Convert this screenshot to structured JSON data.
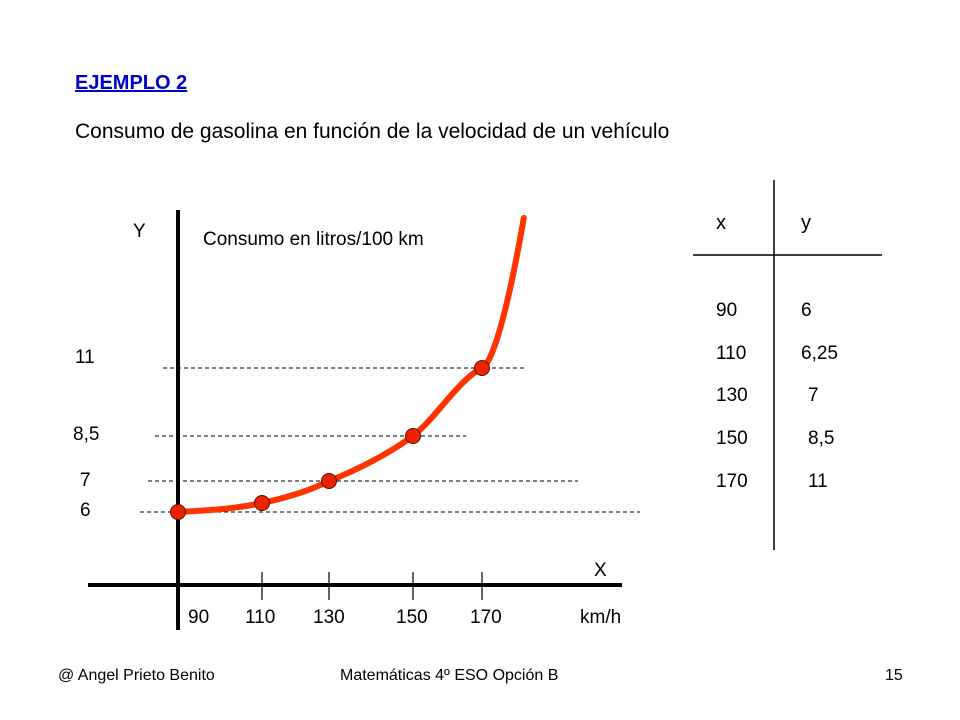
{
  "slide": {
    "heading": "EJEMPLO 2",
    "title": "Consumo de gasolina en función de la velocidad de un vehículo"
  },
  "footer": {
    "author": "@  Angel Prieto Benito",
    "course": "Matemáticas  4º ESO  Opción B",
    "page": "15"
  },
  "chart_data": {
    "type": "line",
    "title": "Consumo en litros/100 km",
    "xlabel": "X",
    "ylabel": "Y",
    "x_unit": "km/h",
    "x_ticks": [
      "90",
      "110",
      "130",
      "150",
      "170"
    ],
    "y_ticks": [
      "6",
      "7",
      "8,5",
      "11"
    ],
    "points": [
      {
        "x": 90,
        "y": 6
      },
      {
        "x": 110,
        "y": 6.25
      },
      {
        "x": 130,
        "y": 7
      },
      {
        "x": 150,
        "y": 8.5
      },
      {
        "x": 170,
        "y": 11
      }
    ],
    "curve_color": "#ff3300",
    "point_color": "#ee2200",
    "grid": false,
    "guide_lines": "dashed"
  },
  "table": {
    "headers": [
      "x",
      "y"
    ],
    "rows": [
      [
        "90",
        "6"
      ],
      [
        "110",
        "6,25"
      ],
      [
        "130",
        "7"
      ],
      [
        "150",
        "8,5"
      ],
      [
        "170",
        "11"
      ]
    ]
  }
}
